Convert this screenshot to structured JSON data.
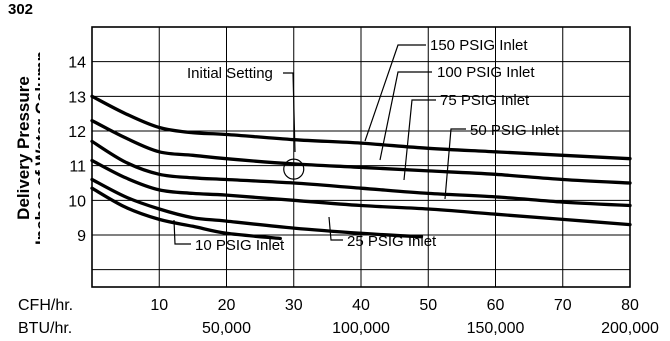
{
  "figure_number": "302",
  "chart_data": {
    "type": "line",
    "ylabel_lines": [
      "Delivery Pressure",
      "Inches of Water Column"
    ],
    "xlabel_primary": "CFH/hr.",
    "xlabel_secondary": "BTU/hr.",
    "xlim": [
      0,
      80
    ],
    "ylim": [
      7.5,
      15
    ],
    "grid": true,
    "x_ticks": [
      10,
      20,
      30,
      40,
      50,
      60,
      70,
      80
    ],
    "btu_ticks": [
      {
        "x": 20,
        "label": "50,000"
      },
      {
        "x": 40,
        "label": "100,000"
      },
      {
        "x": 60,
        "label": "150,000"
      },
      {
        "x": 80,
        "label": "200,000"
      }
    ],
    "y_ticks": [
      9,
      10,
      11,
      12,
      13,
      14
    ],
    "series": [
      {
        "name": "150 PSIG Inlet",
        "x": [
          0,
          5,
          10,
          15,
          20,
          30,
          40,
          50,
          60,
          70,
          80
        ],
        "y": [
          13.0,
          12.5,
          12.1,
          11.95,
          11.9,
          11.75,
          11.65,
          11.5,
          11.4,
          11.3,
          11.2
        ]
      },
      {
        "name": "100 PSIG Inlet",
        "x": [
          0,
          5,
          10,
          15,
          20,
          30,
          40,
          50,
          60,
          70,
          80
        ],
        "y": [
          12.3,
          11.8,
          11.4,
          11.3,
          11.2,
          11.05,
          10.95,
          10.85,
          10.75,
          10.6,
          10.5
        ]
      },
      {
        "name": "75 PSIG Inlet",
        "x": [
          0,
          5,
          10,
          15,
          20,
          30,
          40,
          50,
          60,
          70,
          80
        ],
        "y": [
          11.7,
          11.1,
          10.75,
          10.65,
          10.6,
          10.5,
          10.35,
          10.2,
          10.1,
          9.95,
          9.85
        ]
      },
      {
        "name": "50 PSIG Inlet",
        "x": [
          0,
          5,
          10,
          15,
          20,
          30,
          40,
          50,
          60,
          70,
          80
        ],
        "y": [
          11.15,
          10.65,
          10.3,
          10.2,
          10.15,
          10.0,
          9.85,
          9.75,
          9.6,
          9.45,
          9.3
        ]
      },
      {
        "name": "25 PSIG Inlet",
        "x": [
          0,
          5,
          10,
          15,
          20,
          30,
          40,
          49
        ],
        "y": [
          10.6,
          10.1,
          9.75,
          9.5,
          9.4,
          9.2,
          9.05,
          8.95
        ]
      },
      {
        "name": "10 PSIG Inlet",
        "x": [
          0,
          5,
          10,
          15,
          20,
          28
        ],
        "y": [
          10.35,
          9.8,
          9.45,
          9.25,
          9.05,
          8.9
        ]
      }
    ],
    "annotations": [
      {
        "text": "150 PSIG Inlet"
      },
      {
        "text": "100 PSIG Inlet"
      },
      {
        "text": "75 PSIG Inlet"
      },
      {
        "text": "50 PSIG Inlet"
      },
      {
        "text": "10 PSIG Inlet"
      },
      {
        "text": "25 PSIG Inlet"
      },
      {
        "text": "Initial Setting",
        "x": 30,
        "y": 10.9
      }
    ]
  }
}
